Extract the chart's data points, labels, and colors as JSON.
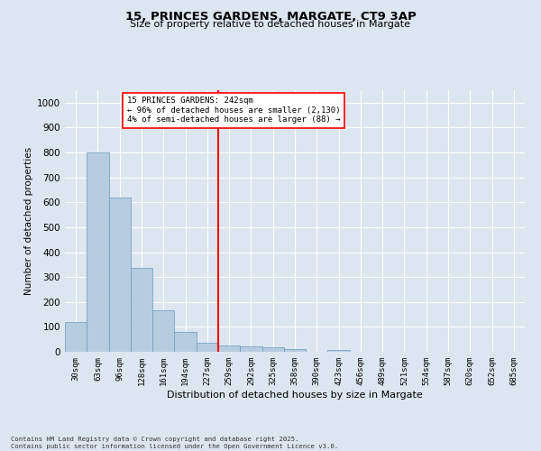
{
  "title1": "15, PRINCES GARDENS, MARGATE, CT9 3AP",
  "title2": "Size of property relative to detached houses in Margate",
  "xlabel": "Distribution of detached houses by size in Margate",
  "ylabel": "Number of detached properties",
  "bins": [
    "30sqm",
    "63sqm",
    "96sqm",
    "128sqm",
    "161sqm",
    "194sqm",
    "227sqm",
    "259sqm",
    "292sqm",
    "325sqm",
    "358sqm",
    "390sqm",
    "423sqm",
    "456sqm",
    "489sqm",
    "521sqm",
    "554sqm",
    "587sqm",
    "620sqm",
    "652sqm",
    "685sqm"
  ],
  "values": [
    120,
    800,
    620,
    335,
    165,
    80,
    38,
    25,
    22,
    17,
    12,
    0,
    8,
    0,
    0,
    0,
    0,
    0,
    0,
    0,
    0
  ],
  "bar_color": "#b8ccdf",
  "bar_edge_color": "#6699bb",
  "vline_color": "red",
  "annotation_text": "15 PRINCES GARDENS: 242sqm\n← 96% of detached houses are smaller (2,130)\n4% of semi-detached houses are larger (88) →",
  "annotation_box_color": "white",
  "annotation_box_edge": "red",
  "ylim": [
    0,
    1050
  ],
  "yticks": [
    0,
    100,
    200,
    300,
    400,
    500,
    600,
    700,
    800,
    900,
    1000
  ],
  "bg_color": "#dce6f0",
  "grid_color": "white",
  "footer1": "Contains HM Land Registry data © Crown copyright and database right 2025.",
  "footer2": "Contains public sector information licensed under the Open Government Licence v3.0."
}
